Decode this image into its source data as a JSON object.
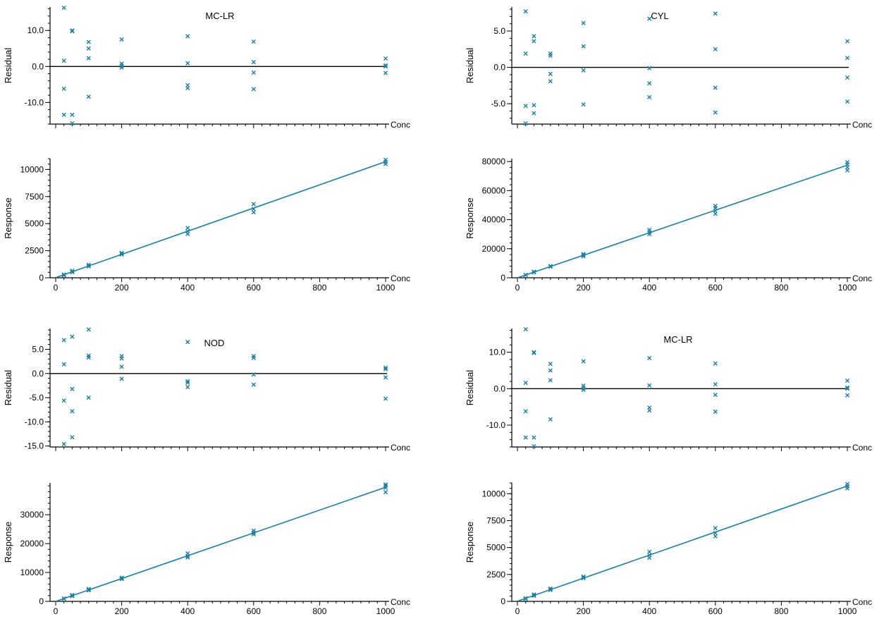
{
  "colors": {
    "data": "#1a7fa6",
    "axis": "#000000",
    "background": "#ffffff"
  },
  "marker": "x",
  "chart_data": [
    {
      "type": "scatter",
      "title": "MC-LR",
      "xlabel": "Conc",
      "ylabel": "Residual",
      "xlim": [
        0,
        1000
      ],
      "ylim": [
        -16,
        16.5
      ],
      "yticks": [
        -10,
        0,
        10
      ],
      "ytick_labels": [
        "-10.0",
        "0.0",
        "10.0"
      ],
      "reference_line_y": 0,
      "points": [
        [
          25,
          16.3
        ],
        [
          25,
          1.6
        ],
        [
          25,
          -6.2
        ],
        [
          25,
          -13.4
        ],
        [
          50,
          10
        ],
        [
          50,
          9.8
        ],
        [
          50,
          -13.4
        ],
        [
          50,
          -15.8
        ],
        [
          100,
          6.8
        ],
        [
          100,
          5
        ],
        [
          100,
          2.3
        ],
        [
          100,
          -8.4
        ],
        [
          200,
          7.5
        ],
        [
          200,
          0.8
        ],
        [
          200,
          0.2
        ],
        [
          200,
          -0.3
        ],
        [
          400,
          8.4
        ],
        [
          400,
          0.9
        ],
        [
          400,
          -5.2
        ],
        [
          400,
          -6
        ],
        [
          600,
          6.9
        ],
        [
          600,
          1.2
        ],
        [
          600,
          -1.7
        ],
        [
          600,
          -6.3
        ],
        [
          1000,
          2.2
        ],
        [
          1000,
          0.3
        ],
        [
          1000,
          0
        ],
        [
          1000,
          -1.8
        ]
      ]
    },
    {
      "type": "scatter",
      "title": "",
      "xlabel": "Conc",
      "ylabel": "Response",
      "xlim": [
        0,
        1000
      ],
      "ylim": [
        0,
        11000
      ],
      "xticks": [
        0,
        200,
        400,
        600,
        800,
        1000
      ],
      "xtick_labels": [
        "0",
        "200",
        "400",
        "600",
        "800",
        "1000"
      ],
      "yticks": [
        0,
        2500,
        5000,
        7500,
        10000
      ],
      "ytick_labels": [
        "0",
        "2500",
        "5000",
        "7500",
        "10000"
      ],
      "fit_line": [
        [
          0,
          20
        ],
        [
          1000,
          10720
        ]
      ],
      "points": [
        [
          25,
          250
        ],
        [
          25,
          300
        ],
        [
          25,
          230
        ],
        [
          50,
          520
        ],
        [
          50,
          580
        ],
        [
          50,
          640
        ],
        [
          100,
          1050
        ],
        [
          100,
          1150
        ],
        [
          100,
          1200
        ],
        [
          200,
          2150
        ],
        [
          200,
          2250
        ],
        [
          200,
          2300
        ],
        [
          400,
          4050
        ],
        [
          400,
          4300
        ],
        [
          400,
          4600
        ],
        [
          600,
          6050
        ],
        [
          600,
          6350
        ],
        [
          600,
          6800
        ],
        [
          1000,
          10500
        ],
        [
          1000,
          10700
        ],
        [
          1000,
          10900
        ]
      ]
    },
    {
      "type": "scatter",
      "title": "CYL",
      "xlabel": "Conc",
      "ylabel": "Residual",
      "xlim": [
        0,
        1000
      ],
      "ylim": [
        -7.8,
        8.3
      ],
      "yticks": [
        -5,
        0,
        5
      ],
      "ytick_labels": [
        "-5.0",
        "0.0",
        "5.0"
      ],
      "reference_line_y": 0,
      "points": [
        [
          25,
          7.7
        ],
        [
          25,
          1.9
        ],
        [
          25,
          -5.3
        ],
        [
          25,
          -7.7
        ],
        [
          50,
          4.3
        ],
        [
          50,
          3.6
        ],
        [
          50,
          -5.2
        ],
        [
          50,
          -6.3
        ],
        [
          100,
          1.9
        ],
        [
          100,
          1.6
        ],
        [
          100,
          -0.9
        ],
        [
          100,
          -1.9
        ],
        [
          200,
          6.1
        ],
        [
          200,
          2.9
        ],
        [
          200,
          -0.4
        ],
        [
          200,
          -5.1
        ],
        [
          400,
          6.7
        ],
        [
          400,
          -0.1
        ],
        [
          400,
          -2.2
        ],
        [
          400,
          -4.1
        ],
        [
          600,
          7.4
        ],
        [
          600,
          2.5
        ],
        [
          600,
          -2.8
        ],
        [
          600,
          -6.2
        ],
        [
          1000,
          3.6
        ],
        [
          1000,
          1.3
        ],
        [
          1000,
          -1.4
        ],
        [
          1000,
          -4.7
        ]
      ]
    },
    {
      "type": "scatter",
      "title": "",
      "xlabel": "Conc",
      "ylabel": "Response",
      "xlim": [
        0,
        1000
      ],
      "ylim": [
        0,
        82000
      ],
      "xticks": [
        0,
        200,
        400,
        600,
        800,
        1000
      ],
      "xtick_labels": [
        "0",
        "200",
        "400",
        "600",
        "800",
        "1000"
      ],
      "yticks": [
        0,
        20000,
        40000,
        60000,
        80000
      ],
      "ytick_labels": [
        "0",
        "20000",
        "40000",
        "60000",
        "80000"
      ],
      "fit_line": [
        [
          0,
          0
        ],
        [
          1000,
          77500
        ]
      ],
      "points": [
        [
          25,
          1800
        ],
        [
          25,
          2000
        ],
        [
          50,
          3700
        ],
        [
          50,
          4000
        ],
        [
          50,
          4200
        ],
        [
          100,
          7600
        ],
        [
          100,
          7900
        ],
        [
          100,
          8100
        ],
        [
          200,
          14800
        ],
        [
          200,
          15600
        ],
        [
          200,
          16400
        ],
        [
          400,
          30000
        ],
        [
          400,
          31500
        ],
        [
          400,
          33000
        ],
        [
          600,
          44000
        ],
        [
          600,
          46000
        ],
        [
          600,
          48000
        ],
        [
          600,
          49500
        ],
        [
          1000,
          74000
        ],
        [
          1000,
          76000
        ],
        [
          1000,
          78000
        ],
        [
          1000,
          79500
        ]
      ]
    },
    {
      "type": "scatter",
      "title": "NOD",
      "xlabel": "Conc",
      "ylabel": "Residual",
      "xlim": [
        0,
        1000
      ],
      "ylim": [
        -15.2,
        9.3
      ],
      "yticks": [
        -15,
        -10,
        -5,
        0,
        5
      ],
      "ytick_labels": [
        "-15.0",
        "-10.0",
        "-5.0",
        "0.0",
        "5.0"
      ],
      "reference_line_y": 0,
      "points": [
        [
          25,
          6.9
        ],
        [
          25,
          1.9
        ],
        [
          25,
          -5.6
        ],
        [
          25,
          -14.6
        ],
        [
          50,
          7.6
        ],
        [
          50,
          -3.2
        ],
        [
          50,
          -7.8
        ],
        [
          50,
          -13.2
        ],
        [
          100,
          9.1
        ],
        [
          100,
          3.7
        ],
        [
          100,
          3.3
        ],
        [
          100,
          -5
        ],
        [
          200,
          3.6
        ],
        [
          200,
          3.1
        ],
        [
          200,
          1.4
        ],
        [
          200,
          -1.1
        ],
        [
          400,
          6.5
        ],
        [
          400,
          -1.6
        ],
        [
          400,
          -1.9
        ],
        [
          400,
          -2.8
        ],
        [
          600,
          3.6
        ],
        [
          600,
          3.2
        ],
        [
          600,
          -0.2
        ],
        [
          600,
          -2.3
        ],
        [
          1000,
          1.2
        ],
        [
          1000,
          0.9
        ],
        [
          1000,
          -0.8
        ],
        [
          1000,
          -5.2
        ]
      ]
    },
    {
      "type": "scatter",
      "title": "",
      "xlabel": "Conc",
      "ylabel": "Response",
      "xlim": [
        0,
        1000
      ],
      "ylim": [
        0,
        41000
      ],
      "xticks": [
        0,
        200,
        400,
        600,
        800,
        1000
      ],
      "xtick_labels": [
        "0",
        "200",
        "400",
        "600",
        "800",
        "1000"
      ],
      "yticks": [
        0,
        10000,
        20000,
        30000
      ],
      "ytick_labels": [
        "0",
        "10000",
        "20000",
        "30000"
      ],
      "fit_line": [
        [
          0,
          0
        ],
        [
          1000,
          39500
        ]
      ],
      "points": [
        [
          25,
          900
        ],
        [
          25,
          1000
        ],
        [
          50,
          1800
        ],
        [
          50,
          2000
        ],
        [
          50,
          2200
        ],
        [
          100,
          3800
        ],
        [
          100,
          4000
        ],
        [
          100,
          4300
        ],
        [
          200,
          7700
        ],
        [
          200,
          8000
        ],
        [
          200,
          8200
        ],
        [
          400,
          15200
        ],
        [
          400,
          15700
        ],
        [
          400,
          16600
        ],
        [
          600,
          23200
        ],
        [
          600,
          23800
        ],
        [
          600,
          24500
        ],
        [
          1000,
          37800
        ],
        [
          1000,
          39300
        ],
        [
          1000,
          40000
        ],
        [
          1000,
          40500
        ]
      ]
    },
    {
      "type": "scatter",
      "title": "MC-LR",
      "xlabel": "Conc",
      "ylabel": "Residual",
      "xlim": [
        0,
        1000
      ],
      "ylim": [
        -16,
        16.5
      ],
      "yticks": [
        -10,
        0,
        10
      ],
      "ytick_labels": [
        "-10.0",
        "0.0",
        "10.0"
      ],
      "reference_line_y": 0,
      "points": [
        [
          25,
          16.3
        ],
        [
          25,
          1.6
        ],
        [
          25,
          -6.2
        ],
        [
          25,
          -13.4
        ],
        [
          50,
          10
        ],
        [
          50,
          9.8
        ],
        [
          50,
          -13.4
        ],
        [
          50,
          -15.8
        ],
        [
          100,
          6.8
        ],
        [
          100,
          5
        ],
        [
          100,
          2.3
        ],
        [
          100,
          -8.4
        ],
        [
          200,
          7.5
        ],
        [
          200,
          0.8
        ],
        [
          200,
          0.2
        ],
        [
          200,
          -0.3
        ],
        [
          400,
          8.4
        ],
        [
          400,
          0.9
        ],
        [
          400,
          -5.2
        ],
        [
          400,
          -6
        ],
        [
          600,
          6.9
        ],
        [
          600,
          1.2
        ],
        [
          600,
          -1.7
        ],
        [
          600,
          -6.3
        ],
        [
          1000,
          2.2
        ],
        [
          1000,
          0.3
        ],
        [
          1000,
          0
        ],
        [
          1000,
          -1.8
        ]
      ]
    },
    {
      "type": "scatter",
      "title": "",
      "xlabel": "Conc",
      "ylabel": "Response",
      "xlim": [
        0,
        1000
      ],
      "ylim": [
        0,
        11000
      ],
      "xticks": [
        0,
        200,
        400,
        600,
        800,
        1000
      ],
      "xtick_labels": [
        "0",
        "200",
        "400",
        "600",
        "800",
        "1000"
      ],
      "yticks": [
        0,
        2500,
        5000,
        7500,
        10000
      ],
      "ytick_labels": [
        "0",
        "2500",
        "5000",
        "7500",
        "10000"
      ],
      "fit_line": [
        [
          0,
          20
        ],
        [
          1000,
          10720
        ]
      ],
      "points": [
        [
          25,
          250
        ],
        [
          25,
          300
        ],
        [
          25,
          230
        ],
        [
          50,
          520
        ],
        [
          50,
          580
        ],
        [
          50,
          640
        ],
        [
          100,
          1050
        ],
        [
          100,
          1150
        ],
        [
          100,
          1200
        ],
        [
          200,
          2150
        ],
        [
          200,
          2250
        ],
        [
          200,
          2300
        ],
        [
          400,
          4050
        ],
        [
          400,
          4300
        ],
        [
          400,
          4600
        ],
        [
          600,
          6050
        ],
        [
          600,
          6350
        ],
        [
          600,
          6800
        ],
        [
          1000,
          10500
        ],
        [
          1000,
          10700
        ],
        [
          1000,
          10900
        ]
      ]
    }
  ]
}
